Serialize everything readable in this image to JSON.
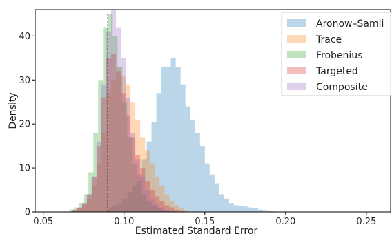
{
  "chart_data": {
    "type": "histogram",
    "xlabel": "Estimated Standard Error",
    "ylabel": "Density",
    "xlim": [
      0.045,
      0.265
    ],
    "ylim": [
      0,
      46
    ],
    "xticks": [
      0.05,
      0.1,
      0.15,
      0.2,
      0.25
    ],
    "xtick_labels": [
      "0.05",
      "0.10",
      "0.15",
      "0.20",
      "0.25"
    ],
    "yticks": [
      0,
      10,
      20,
      30,
      40
    ],
    "ytick_labels": [
      "0",
      "10",
      "20",
      "30",
      "40"
    ],
    "reference_line": {
      "x": 0.09,
      "style": "dashed"
    },
    "legend_position": "top-right",
    "series": [
      {
        "name": "Aronow–Samii",
        "color": "#1f77b4",
        "bins": [
          [
            0.09,
            0.093,
            1
          ],
          [
            0.093,
            0.096,
            1.5
          ],
          [
            0.096,
            0.099,
            2
          ],
          [
            0.099,
            0.102,
            3
          ],
          [
            0.102,
            0.105,
            4.5
          ],
          [
            0.105,
            0.108,
            6
          ],
          [
            0.108,
            0.111,
            8.5
          ],
          [
            0.111,
            0.114,
            12
          ],
          [
            0.114,
            0.117,
            16
          ],
          [
            0.117,
            0.12,
            20.5
          ],
          [
            0.12,
            0.123,
            27
          ],
          [
            0.123,
            0.126,
            33
          ],
          [
            0.126,
            0.129,
            33
          ],
          [
            0.129,
            0.132,
            35
          ],
          [
            0.132,
            0.135,
            33
          ],
          [
            0.135,
            0.138,
            29
          ],
          [
            0.138,
            0.141,
            24
          ],
          [
            0.141,
            0.144,
            21
          ],
          [
            0.144,
            0.147,
            18
          ],
          [
            0.147,
            0.15,
            15
          ],
          [
            0.15,
            0.153,
            11
          ],
          [
            0.153,
            0.156,
            8.5
          ],
          [
            0.156,
            0.159,
            6.5
          ],
          [
            0.159,
            0.162,
            4
          ],
          [
            0.162,
            0.165,
            3
          ],
          [
            0.165,
            0.168,
            2
          ],
          [
            0.168,
            0.171,
            1.5
          ],
          [
            0.171,
            0.174,
            1.4
          ],
          [
            0.174,
            0.177,
            1.2
          ],
          [
            0.177,
            0.18,
            1.0
          ],
          [
            0.18,
            0.183,
            0.8
          ],
          [
            0.183,
            0.186,
            0.5
          ],
          [
            0.186,
            0.189,
            0.4
          ],
          [
            0.189,
            0.192,
            0.2
          ],
          [
            0.192,
            0.195,
            0.1
          ]
        ]
      },
      {
        "name": "Trace",
        "color": "#ff7f0e",
        "bins": [
          [
            0.068,
            0.071,
            0.4
          ],
          [
            0.071,
            0.074,
            0.8
          ],
          [
            0.074,
            0.077,
            1.5
          ],
          [
            0.077,
            0.08,
            3
          ],
          [
            0.08,
            0.083,
            6
          ],
          [
            0.083,
            0.086,
            11
          ],
          [
            0.086,
            0.089,
            18
          ],
          [
            0.089,
            0.092,
            27
          ],
          [
            0.092,
            0.095,
            30
          ],
          [
            0.095,
            0.098,
            33
          ],
          [
            0.098,
            0.101,
            31
          ],
          [
            0.101,
            0.104,
            29
          ],
          [
            0.104,
            0.107,
            25
          ],
          [
            0.107,
            0.11,
            21
          ],
          [
            0.11,
            0.113,
            17
          ],
          [
            0.113,
            0.116,
            14
          ],
          [
            0.116,
            0.119,
            11
          ],
          [
            0.119,
            0.122,
            8
          ],
          [
            0.122,
            0.125,
            6
          ],
          [
            0.125,
            0.128,
            4
          ],
          [
            0.128,
            0.131,
            2.5
          ],
          [
            0.131,
            0.134,
            1.5
          ],
          [
            0.134,
            0.137,
            0.8
          ],
          [
            0.137,
            0.14,
            0.4
          ]
        ]
      },
      {
        "name": "Frobenius",
        "color": "#2ca02c",
        "bins": [
          [
            0.066,
            0.069,
            0.5
          ],
          [
            0.069,
            0.072,
            1
          ],
          [
            0.072,
            0.075,
            2
          ],
          [
            0.075,
            0.078,
            4
          ],
          [
            0.078,
            0.081,
            9
          ],
          [
            0.081,
            0.084,
            18
          ],
          [
            0.084,
            0.087,
            30
          ],
          [
            0.087,
            0.09,
            42
          ],
          [
            0.09,
            0.093,
            45
          ],
          [
            0.093,
            0.096,
            40
          ],
          [
            0.096,
            0.099,
            33
          ],
          [
            0.099,
            0.102,
            25
          ],
          [
            0.102,
            0.105,
            17
          ],
          [
            0.105,
            0.108,
            11
          ],
          [
            0.108,
            0.111,
            7
          ],
          [
            0.111,
            0.114,
            4
          ],
          [
            0.114,
            0.117,
            2.5
          ],
          [
            0.117,
            0.12,
            1.5
          ],
          [
            0.12,
            0.123,
            0.8
          ],
          [
            0.123,
            0.126,
            0.4
          ]
        ]
      },
      {
        "name": "Targeted",
        "color": "#d62728",
        "bins": [
          [
            0.068,
            0.071,
            0.5
          ],
          [
            0.071,
            0.074,
            1
          ],
          [
            0.074,
            0.077,
            2
          ],
          [
            0.077,
            0.08,
            4
          ],
          [
            0.08,
            0.083,
            8
          ],
          [
            0.083,
            0.086,
            15
          ],
          [
            0.086,
            0.089,
            26
          ],
          [
            0.089,
            0.092,
            35
          ],
          [
            0.092,
            0.095,
            36
          ],
          [
            0.095,
            0.098,
            32
          ],
          [
            0.098,
            0.101,
            27
          ],
          [
            0.101,
            0.104,
            22
          ],
          [
            0.104,
            0.107,
            17
          ],
          [
            0.107,
            0.11,
            13
          ],
          [
            0.11,
            0.113,
            10
          ],
          [
            0.113,
            0.116,
            7
          ],
          [
            0.116,
            0.119,
            5
          ],
          [
            0.119,
            0.122,
            3.5
          ],
          [
            0.122,
            0.125,
            2.5
          ],
          [
            0.125,
            0.128,
            1.5
          ],
          [
            0.128,
            0.131,
            1
          ],
          [
            0.131,
            0.134,
            0.5
          ],
          [
            0.134,
            0.137,
            0.3
          ]
        ]
      },
      {
        "name": "Composite",
        "color": "#9467bd",
        "bins": [
          [
            0.068,
            0.071,
            0.4
          ],
          [
            0.071,
            0.074,
            0.9
          ],
          [
            0.074,
            0.077,
            2
          ],
          [
            0.077,
            0.08,
            4
          ],
          [
            0.08,
            0.083,
            8
          ],
          [
            0.083,
            0.086,
            16
          ],
          [
            0.086,
            0.089,
            29
          ],
          [
            0.089,
            0.092,
            41
          ],
          [
            0.092,
            0.095,
            46
          ],
          [
            0.095,
            0.098,
            42
          ],
          [
            0.098,
            0.101,
            35
          ],
          [
            0.101,
            0.104,
            26
          ],
          [
            0.104,
            0.107,
            18
          ],
          [
            0.107,
            0.11,
            12
          ],
          [
            0.11,
            0.113,
            8
          ],
          [
            0.113,
            0.116,
            5
          ],
          [
            0.116,
            0.119,
            3
          ],
          [
            0.119,
            0.122,
            1.8
          ],
          [
            0.122,
            0.125,
            1
          ],
          [
            0.125,
            0.128,
            0.5
          ],
          [
            0.128,
            0.131,
            0.2
          ]
        ]
      }
    ]
  }
}
